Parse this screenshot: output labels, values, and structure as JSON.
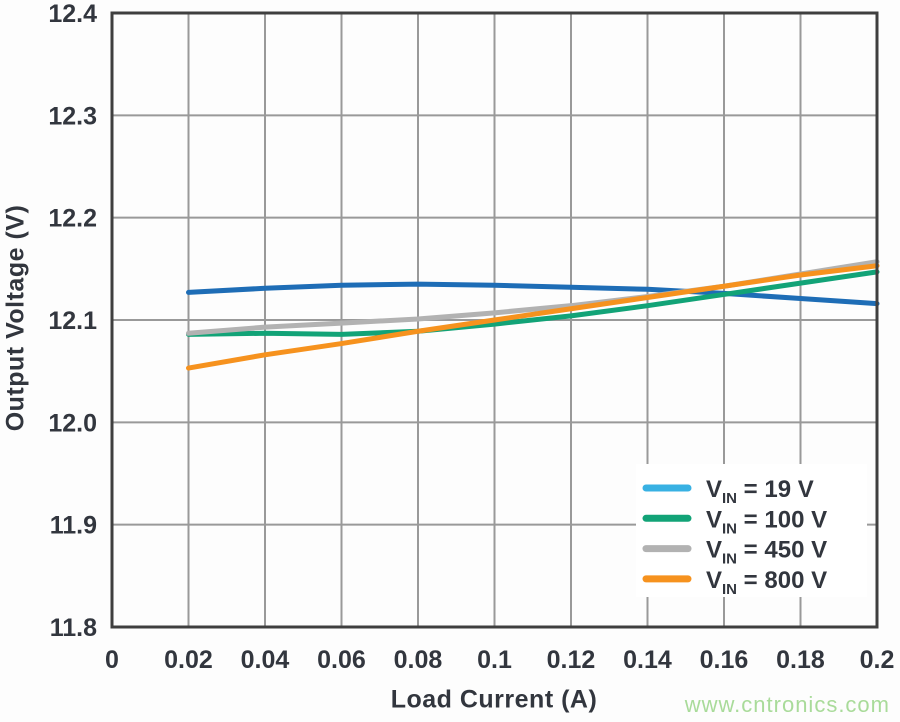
{
  "page": {
    "watermark": "www.cntronics.com",
    "watermark_color": "#a9db9a",
    "background": "#fdfdfd"
  },
  "chart_data": {
    "type": "line",
    "title": "",
    "xlabel": "Load Current (A)",
    "ylabel": "Output Voltage (V)",
    "xlim": [
      0,
      0.2
    ],
    "ylim": [
      11.8,
      12.4
    ],
    "grid": true,
    "legend_position": "bottom-right",
    "colors": {
      "grid": "#999999",
      "frame": "#3f3f3f",
      "text": "#32363e",
      "legend_background": "#ffffff"
    },
    "x_ticks": [
      {
        "label": "0",
        "value": 0
      },
      {
        "label": "0.02",
        "value": 0.02
      },
      {
        "label": "0.04",
        "value": 0.04
      },
      {
        "label": "0.06",
        "value": 0.06
      },
      {
        "label": "0.08",
        "value": 0.08
      },
      {
        "label": "0.1",
        "value": 0.1
      },
      {
        "label": "0.12",
        "value": 0.12
      },
      {
        "label": "0.14",
        "value": 0.14
      },
      {
        "label": "0.16",
        "value": 0.16
      },
      {
        "label": "0.18",
        "value": 0.18
      },
      {
        "label": "0.2",
        "value": 0.2
      }
    ],
    "y_ticks": [
      {
        "label": "12.4",
        "value": 12.4
      },
      {
        "label": "12.3",
        "value": 12.3
      },
      {
        "label": "12.2",
        "value": 12.2
      },
      {
        "label": "12.1",
        "value": 12.1
      },
      {
        "label": "12.0",
        "value": 12.0
      },
      {
        "label": "11.9",
        "value": 11.9
      },
      {
        "label": "11.8",
        "value": 11.8
      }
    ],
    "x": [
      0.02,
      0.04,
      0.06,
      0.08,
      0.1,
      0.12,
      0.14,
      0.16,
      0.18,
      0.2
    ],
    "series": [
      {
        "name": "VIN = 19 V",
        "label": {
          "prefix": "V",
          "sub": "IN",
          "suffix": " = 19 V"
        },
        "line_color": "#1e6db6",
        "legend_color": "#38b1e3",
        "values": [
          12.127,
          12.131,
          12.134,
          12.135,
          12.134,
          12.132,
          12.13,
          12.126,
          12.121,
          12.116
        ]
      },
      {
        "name": "VIN = 100 V",
        "label": {
          "prefix": "V",
          "sub": "IN",
          "suffix": " = 100 V"
        },
        "line_color": "#12a377",
        "legend_color": "#12a377",
        "values": [
          12.086,
          12.087,
          12.086,
          12.089,
          12.096,
          12.104,
          12.114,
          12.125,
          12.136,
          12.147
        ]
      },
      {
        "name": "VIN = 450 V",
        "label": {
          "prefix": "V",
          "sub": "IN",
          "suffix": " = 450 V"
        },
        "line_color": "#b2b2b2",
        "legend_color": "#b2b2b2",
        "values": [
          12.087,
          12.093,
          12.097,
          12.101,
          12.107,
          12.114,
          12.123,
          12.133,
          12.145,
          12.157
        ]
      },
      {
        "name": "VIN = 800 V",
        "label": {
          "prefix": "V",
          "sub": "IN",
          "suffix": " = 800 V"
        },
        "line_color": "#f6921e",
        "legend_color": "#f6921e",
        "values": [
          12.053,
          12.066,
          12.077,
          12.089,
          12.1,
          12.111,
          12.122,
          12.133,
          12.144,
          12.153
        ]
      }
    ]
  }
}
